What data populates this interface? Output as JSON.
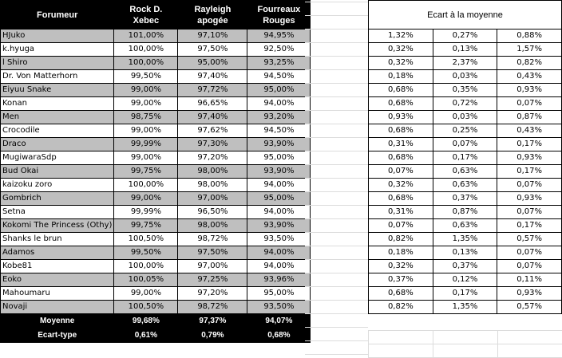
{
  "headers": {
    "forumeur": "Forumeur",
    "col1": "Rock D. Xebec",
    "col2": "Rayleigh apogée",
    "col3": "Fourreaux Rouges"
  },
  "rows": [
    {
      "name": "HJuko",
      "v1": "101,00%",
      "v2": "97,10%",
      "v3": "94,95%"
    },
    {
      "name": "k.hyuga",
      "v1": "100,00%",
      "v2": "97,50%",
      "v3": "92,50%"
    },
    {
      "name": "l Shiro",
      "v1": "100,00%",
      "v2": "95,00%",
      "v3": "93,25%"
    },
    {
      "name": "Dr. Von Matterhorn",
      "v1": "99,50%",
      "v2": "97,40%",
      "v3": "94,50%"
    },
    {
      "name": "Eiyuu Snake",
      "v1": "99,00%",
      "v2": "97,72%",
      "v3": "95,00%"
    },
    {
      "name": "Konan",
      "v1": "99,00%",
      "v2": "96,65%",
      "v3": "94,00%"
    },
    {
      "name": "Men",
      "v1": "98,75%",
      "v2": "97,40%",
      "v3": "93,20%"
    },
    {
      "name": "Crocodile",
      "v1": "99,00%",
      "v2": "97,62%",
      "v3": "94,50%"
    },
    {
      "name": "Draco",
      "v1": "99,99%",
      "v2": "97,30%",
      "v3": "93,90%"
    },
    {
      "name": "MugiwaraSdp",
      "v1": "99,00%",
      "v2": "97,20%",
      "v3": "95,00%"
    },
    {
      "name": "Bud Okai",
      "v1": "99,75%",
      "v2": "98,00%",
      "v3": "93,90%"
    },
    {
      "name": "kaizoku zoro",
      "v1": "100,00%",
      "v2": "98,00%",
      "v3": "94,00%"
    },
    {
      "name": "Gombrich",
      "v1": "99,00%",
      "v2": "97,00%",
      "v3": "95,00%"
    },
    {
      "name": "Setna",
      "v1": "99,99%",
      "v2": "96,50%",
      "v3": "94,00%"
    },
    {
      "name": "Kokomi The Princess (Othy)",
      "v1": "99,75%",
      "v2": "98,00%",
      "v3": "93,90%"
    },
    {
      "name": "Shanks le brun",
      "v1": "100,50%",
      "v2": "98,72%",
      "v3": "93,50%"
    },
    {
      "name": "Adamos",
      "v1": "99,50%",
      "v2": "97,50%",
      "v3": "94,00%"
    },
    {
      "name": "Kobe81",
      "v1": "100,00%",
      "v2": "97,00%",
      "v3": "94,00%"
    },
    {
      "name": "Eoko",
      "v1": "100,05%",
      "v2": "97,25%",
      "v3": "93,96%"
    },
    {
      "name": "Mahoumaru",
      "v1": "99,00%",
      "v2": "97,20%",
      "v3": "95,00%"
    },
    {
      "name": "Novaji",
      "v1": "100,50%",
      "v2": "98,72%",
      "v3": "93,50%"
    }
  ],
  "summary": {
    "moyenne": {
      "label": "Moyenne",
      "v1": "99,68%",
      "v2": "97,37%",
      "v3": "94,07%"
    },
    "ecart_type": {
      "label": "Ecart-type",
      "v1": "0,61%",
      "v2": "0,79%",
      "v3": "0,68%"
    }
  },
  "ecart": {
    "title": "Ecart à la moyenne",
    "rows": [
      [
        "1,32%",
        "0,27%",
        "0,88%"
      ],
      [
        "0,32%",
        "0,13%",
        "1,57%"
      ],
      [
        "0,32%",
        "2,37%",
        "0,82%"
      ],
      [
        "0,18%",
        "0,03%",
        "0,43%"
      ],
      [
        "0,68%",
        "0,35%",
        "0,93%"
      ],
      [
        "0,68%",
        "0,72%",
        "0,07%"
      ],
      [
        "0,93%",
        "0,03%",
        "0,87%"
      ],
      [
        "0,68%",
        "0,25%",
        "0,43%"
      ],
      [
        "0,31%",
        "0,07%",
        "0,17%"
      ],
      [
        "0,68%",
        "0,17%",
        "0,93%"
      ],
      [
        "0,07%",
        "0,63%",
        "0,17%"
      ],
      [
        "0,32%",
        "0,63%",
        "0,07%"
      ],
      [
        "0,68%",
        "0,37%",
        "0,93%"
      ],
      [
        "0,31%",
        "0,87%",
        "0,07%"
      ],
      [
        "0,07%",
        "0,63%",
        "0,17%"
      ],
      [
        "0,82%",
        "1,35%",
        "0,57%"
      ],
      [
        "0,18%",
        "0,13%",
        "0,07%"
      ],
      [
        "0,32%",
        "0,37%",
        "0,07%"
      ],
      [
        "0,37%",
        "0,12%",
        "0,11%"
      ],
      [
        "0,68%",
        "0,17%",
        "0,93%"
      ],
      [
        "0,82%",
        "1,35%",
        "0,57%"
      ]
    ]
  }
}
